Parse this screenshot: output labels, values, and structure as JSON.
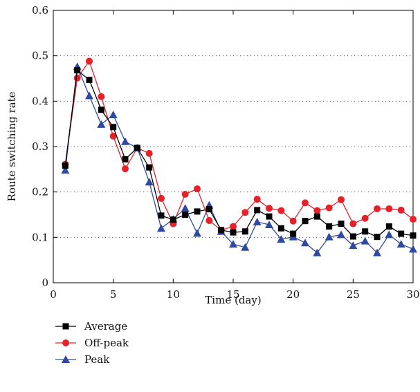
{
  "chart_data": {
    "type": "line",
    "xlabel": "Time (day)",
    "ylabel": "Route switching rate",
    "xlim": [
      0,
      30
    ],
    "ylim": [
      0,
      0.6
    ],
    "x_ticks": [
      0,
      5,
      10,
      15,
      20,
      25,
      30
    ],
    "y_ticks": [
      0,
      0.1,
      0.2,
      0.3,
      0.4,
      0.5,
      0.6
    ],
    "x_tick_labels": [
      "0",
      "5",
      "10",
      "15",
      "20",
      "25",
      "30"
    ],
    "y_tick_labels": [
      "0",
      "0.1",
      "0.2",
      "0.3",
      "0.4",
      "0.5",
      "0.6"
    ],
    "grid": "horizontal dotted",
    "legend_position": "bottom-left, below plot",
    "x": [
      1,
      2,
      3,
      4,
      5,
      6,
      7,
      8,
      9,
      10,
      11,
      12,
      13,
      14,
      15,
      16,
      17,
      18,
      19,
      20,
      21,
      22,
      23,
      24,
      25,
      26,
      27,
      28,
      29,
      30
    ],
    "series": [
      {
        "name": "Average",
        "color": "#000000",
        "marker": "square",
        "values": [
          0.258,
          0.468,
          0.447,
          0.381,
          0.343,
          0.272,
          0.297,
          0.254,
          0.148,
          0.139,
          0.15,
          0.157,
          0.162,
          0.116,
          0.111,
          0.113,
          0.16,
          0.146,
          0.12,
          0.108,
          0.136,
          0.146,
          0.124,
          0.13,
          0.102,
          0.113,
          0.101,
          0.124,
          0.108,
          0.104
        ]
      },
      {
        "name": "Off-peak",
        "color": "#e8202a",
        "marker": "circle",
        "values": [
          0.261,
          0.451,
          0.488,
          0.41,
          0.323,
          0.251,
          0.297,
          0.285,
          0.186,
          0.13,
          0.195,
          0.207,
          0.137,
          0.116,
          0.124,
          0.155,
          0.184,
          0.164,
          0.159,
          0.136,
          0.176,
          0.159,
          0.165,
          0.183,
          0.13,
          0.142,
          0.163,
          0.163,
          0.16,
          0.14
        ]
      },
      {
        "name": "Peak",
        "color": "#2e4aa0",
        "marker": "triangle",
        "values": [
          0.248,
          0.476,
          0.412,
          0.349,
          0.37,
          0.311,
          0.297,
          0.222,
          0.12,
          0.14,
          0.164,
          0.109,
          0.171,
          0.113,
          0.085,
          0.078,
          0.134,
          0.128,
          0.096,
          0.101,
          0.088,
          0.066,
          0.101,
          0.106,
          0.082,
          0.092,
          0.066,
          0.106,
          0.085,
          0.074
        ]
      }
    ]
  }
}
